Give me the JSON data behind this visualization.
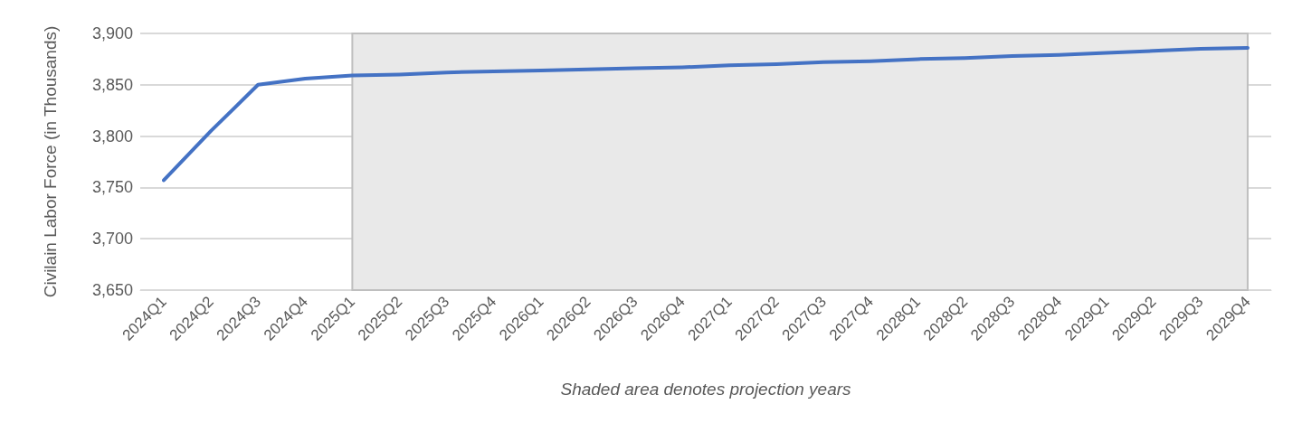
{
  "chart_data": {
    "type": "line",
    "ylabel": "Civilain Labor Force (in Thousands)",
    "xlabel": "Shaded area denotes projection years",
    "categories": [
      "2024Q1",
      "2024Q2",
      "2024Q3",
      "2024Q4",
      "2025Q1",
      "2025Q2",
      "2025Q3",
      "2025Q4",
      "2026Q1",
      "2026Q2",
      "2026Q3",
      "2026Q4",
      "2027Q1",
      "2027Q2",
      "2027Q3",
      "2027Q4",
      "2028Q1",
      "2028Q2",
      "2028Q3",
      "2028Q4",
      "2029Q1",
      "2029Q2",
      "2029Q3",
      "2029Q4"
    ],
    "series": [
      {
        "color": "#4472c4",
        "values": [
          3757,
          3805,
          3850,
          3856,
          3859,
          3860,
          3862,
          3863,
          3864,
          3865,
          3866,
          3867,
          3869,
          3870,
          3872,
          3873,
          3875,
          3876,
          3878,
          3879,
          3881,
          3883,
          3885,
          3886
        ]
      }
    ],
    "ylim": [
      3650,
      3900
    ],
    "yticks": [
      {
        "value": 3650,
        "label": "3,650"
      },
      {
        "value": 3700,
        "label": "3,700"
      },
      {
        "value": 3750,
        "label": "3,750"
      },
      {
        "value": 3800,
        "label": "3,800"
      },
      {
        "value": 3850,
        "label": "3,850"
      },
      {
        "value": 3900,
        "label": "3,900"
      }
    ],
    "bands": [
      {
        "axis": "x",
        "from": "2025Q1",
        "to": "2029Q4",
        "color": "#e9e9e9"
      }
    ],
    "grid": "y",
    "marker": "none",
    "line_style": "solid"
  }
}
